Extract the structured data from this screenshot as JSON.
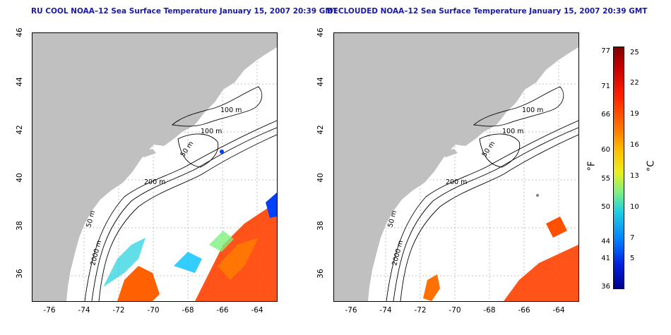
{
  "titles": {
    "left": "RU COOL NOAA–12 Sea Surface Temperature January 15, 2007 20:39 GMT",
    "right": "DECLOUDED NOAA–12 Sea Surface Temperature January 15, 2007 20:39 GMT"
  },
  "axes": {
    "lat_ticks": [
      "46",
      "44",
      "42",
      "40",
      "38",
      "36"
    ],
    "lon_ticks": [
      "-76",
      "-74",
      "-72",
      "-70",
      "-68",
      "-66",
      "-64"
    ],
    "lat_range": [
      35,
      46
    ],
    "lon_range": [
      -77,
      -63
    ]
  },
  "contours": {
    "labels": [
      "100 m",
      "100 m",
      "50 m",
      "200 m",
      "50 m",
      "2000 m"
    ]
  },
  "colorbar": {
    "unit_f": "°F",
    "unit_c": "°C",
    "fahrenheit_ticks": [
      "77",
      "71",
      "66",
      "60",
      "55",
      "50",
      "44",
      "41",
      "36"
    ],
    "celsius_ticks": [
      "25",
      "22",
      "19",
      "16",
      "13",
      "10",
      "7",
      "5"
    ]
  },
  "colors": {
    "land": "#c0c0c0",
    "title": "#1a1aa6",
    "warm": "#ff4000",
    "cool": "#00c0ff"
  }
}
